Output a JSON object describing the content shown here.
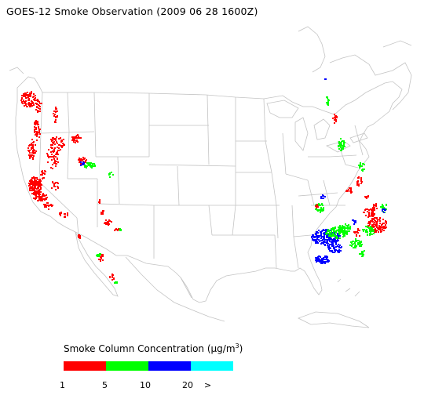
{
  "title": "GOES-12 Smoke Observation (2009 06 28  1600Z)",
  "legend": {
    "title_prefix": "Smoke Column Concentration (",
    "title_mu": "μ",
    "title_unit": "g/m",
    "title_sup": "3",
    "title_suffix": ")",
    "classes": [
      {
        "min": 1,
        "max": 5,
        "color": "#ff0000"
      },
      {
        "min": 5,
        "max": 10,
        "color": "#00ff00"
      },
      {
        "min": 10,
        "max": 20,
        "color": "#0000ff"
      },
      {
        "min": 20,
        "max": null,
        "color": "#00ffff"
      }
    ],
    "ticks": [
      "1",
      "5",
      "10",
      "20",
      ">"
    ]
  },
  "map": {
    "region": "Contiguous United States",
    "boundary_color": "#c8c8c8",
    "smoke_regions": [
      {
        "area": "Pacific Northwest coast",
        "level": "1-5"
      },
      {
        "area": "Northern California",
        "level": "1-5"
      },
      {
        "area": "Idaho / western Montana",
        "level": "5-10"
      },
      {
        "area": "Southern Nevada / Arizona",
        "level": "1-5"
      },
      {
        "area": "Baja California",
        "level": "1-5"
      },
      {
        "area": "Northern New York / Vermont",
        "level": "5-10"
      },
      {
        "area": "Mid-Atlantic coast",
        "level": "1-5"
      },
      {
        "area": "Carolinas / Georgia coast",
        "level": "10-20"
      },
      {
        "area": "Atlantic offshore",
        "level": "1-5"
      }
    ]
  }
}
